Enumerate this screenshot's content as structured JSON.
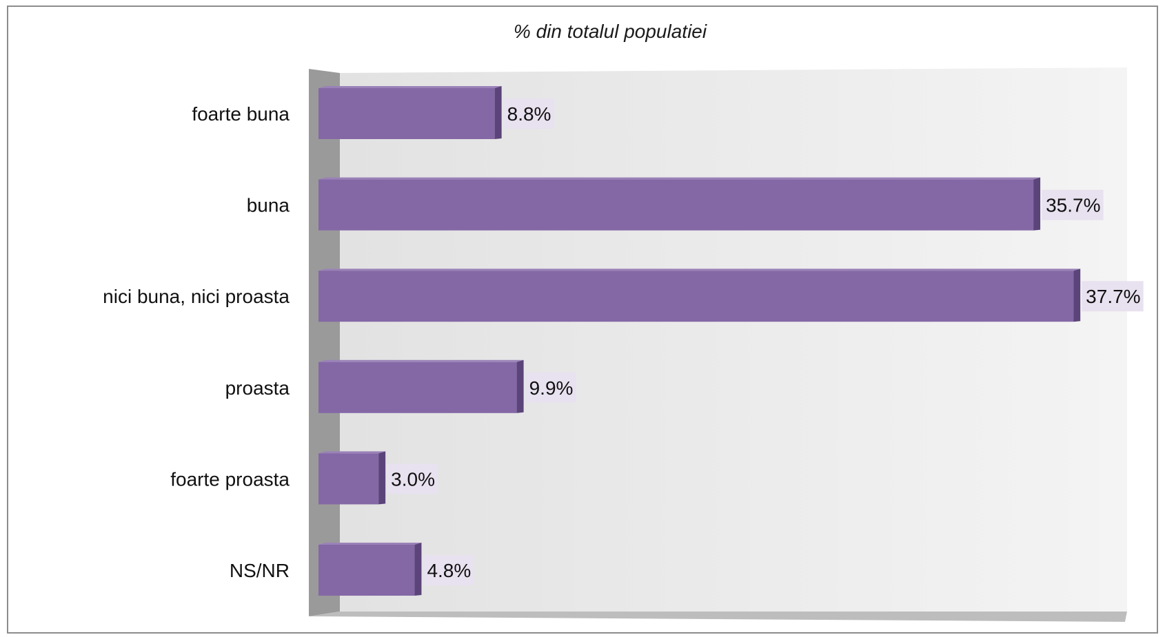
{
  "chart_data": {
    "type": "bar",
    "orientation": "horizontal",
    "title": "% din totalul populatiei",
    "categories": [
      "foarte buna",
      "buna",
      "nici buna, nici proasta",
      "proasta",
      "foarte proasta",
      "NS/NR"
    ],
    "values": [
      8.8,
      35.7,
      37.7,
      9.9,
      3.0,
      4.8
    ],
    "value_labels": [
      "8.8%",
      "35.7%",
      "37.7%",
      "9.9%",
      "3.0%",
      "4.8%"
    ],
    "unit": "%",
    "xlim": [
      0,
      40
    ],
    "xlabel": "",
    "ylabel": "",
    "grid": false,
    "legend": "none",
    "style": "3d",
    "colors": {
      "bar": "#8468a6",
      "bar_side": "#5b4479",
      "label_bg": "#e8e1ef",
      "wall": "#ececec",
      "side_wall": "#9a9a9a",
      "floor": "#bdbdbd"
    }
  }
}
